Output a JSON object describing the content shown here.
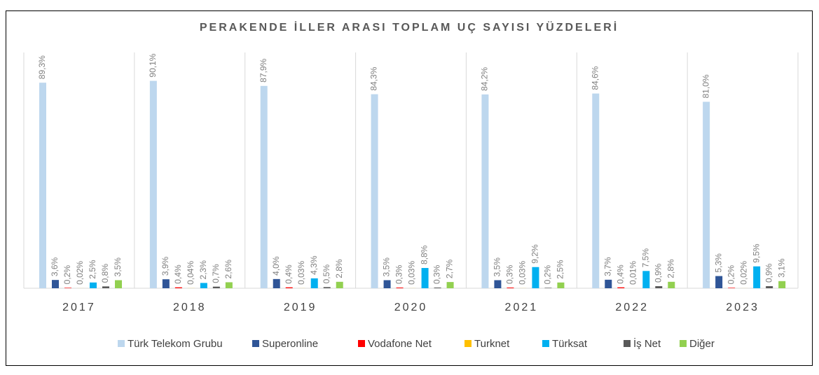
{
  "chart_data": {
    "type": "bar",
    "title": "PERAKENDE İLLER ARASI TOPLAM UÇ SAYISI YÜZDELERİ",
    "categories": [
      "2017",
      "2018",
      "2019",
      "2020",
      "2021",
      "2022",
      "2023"
    ],
    "series": [
      {
        "name": "Türk Telekom Grubu",
        "color": "#bdd7ee",
        "values": [
          89.3,
          90.1,
          87.9,
          84.3,
          84.2,
          84.6,
          81.0
        ],
        "value_labels": [
          "89,3%",
          "90,1%",
          "87,9%",
          "84,3%",
          "84,2%",
          "84,6%",
          "81,0%"
        ]
      },
      {
        "name": "Superonline",
        "color": "#2f5597",
        "values": [
          3.6,
          3.9,
          4.0,
          3.5,
          3.5,
          3.7,
          5.3
        ],
        "value_labels": [
          "3,6%",
          "3,9%",
          "4,0%",
          "3,5%",
          "3,5%",
          "3,7%",
          "5,3%"
        ]
      },
      {
        "name": "Vodafone Net",
        "color": "#ff0000",
        "values": [
          0.2,
          0.4,
          0.4,
          0.3,
          0.3,
          0.4,
          0.2
        ],
        "value_labels": [
          "0,2%",
          "0,4%",
          "0,4%",
          "0,3%",
          "0,3%",
          "0,4%",
          "0,2%"
        ]
      },
      {
        "name": "Turknet",
        "color": "#ffc000",
        "values": [
          0.02,
          0.04,
          0.03,
          0.03,
          0.03,
          0.01,
          0.02
        ],
        "value_labels": [
          "0,02%",
          "0,04%",
          "0,03%",
          "0,03%",
          "0,03%",
          "0,01%",
          "0,02%"
        ]
      },
      {
        "name": "Türksat",
        "color": "#00b0f0",
        "values": [
          2.5,
          2.3,
          4.3,
          8.8,
          9.2,
          7.5,
          9.5
        ],
        "value_labels": [
          "2,5%",
          "2,3%",
          "4,3%",
          "8,8%",
          "9,2%",
          "7,5%",
          "9,5%"
        ]
      },
      {
        "name": "İş Net",
        "color": "#595959",
        "values": [
          0.8,
          0.7,
          0.5,
          0.3,
          0.2,
          0.9,
          0.9
        ],
        "value_labels": [
          "0,8%",
          "0,7%",
          "0,5%",
          "0,3%",
          "0,2%",
          "0,9%",
          "0,9%"
        ]
      },
      {
        "name": "Diğer",
        "color": "#92d050",
        "values": [
          3.5,
          2.6,
          2.8,
          2.7,
          2.5,
          2.8,
          3.1
        ],
        "value_labels": [
          "3,5%",
          "2,6%",
          "2,8%",
          "2,7%",
          "2,5%",
          "2,8%",
          "3,1%"
        ]
      }
    ]
  }
}
